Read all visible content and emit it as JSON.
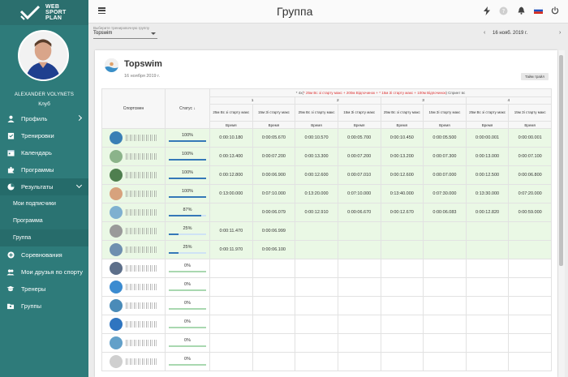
{
  "brand": {
    "line1": "WEB",
    "line2": "SPORT",
    "line3": "PLAN"
  },
  "user": {
    "name": "ALEXANDER VOLYNETS",
    "club": "Клуб"
  },
  "sidebar": {
    "items": [
      {
        "label": "Профиль",
        "icon": "person-icon"
      },
      {
        "label": "Тренировки",
        "icon": "clipboard-check-icon"
      },
      {
        "label": "Календарь",
        "icon": "calendar-icon"
      },
      {
        "label": "Программы",
        "icon": "puzzle-icon"
      },
      {
        "label": "Результаты",
        "icon": "pie-chart-icon"
      },
      {
        "label": "Соревнования",
        "icon": "plus-circle-icon"
      },
      {
        "label": "Мои друзья по спорту",
        "icon": "people-icon"
      },
      {
        "label": "Тренеры",
        "icon": "trainer-icon"
      },
      {
        "label": "Группы",
        "icon": "folder-people-icon"
      }
    ],
    "subitems": [
      {
        "label": "Мои подписчики"
      },
      {
        "label": "Программа"
      },
      {
        "label": "Группа"
      }
    ]
  },
  "header": {
    "title": "Группа"
  },
  "filter": {
    "group_label": "Выберите тренировочную группу",
    "group_value": "Topswim",
    "date_prev": "‹",
    "date_value": "16 нояб. 2019 г.",
    "date_next": "›"
  },
  "card": {
    "title": "Topswim",
    "date": "16 ноября 2019 г.",
    "show_button": "Тайм трайл"
  },
  "table": {
    "col_athlete": "Спортсмен",
    "col_status": "Статус",
    "legend_prefix": "* 4x(",
    "legend_red1": "* 25м Вс зі старту макс + 200м Відпочинок + ",
    "legend_red2": "* 15м Зі старту макс + 100м Відпочинок",
    "legend_suffix": ") Спринт вс",
    "set_numbers": [
      "1",
      "2",
      "3",
      "4"
    ],
    "distances": [
      "25м Вс зі старту макс",
      "15м Зі старту макс",
      "25м Вс зі старту макс",
      "15м Зі старту макс",
      "25м Вс зі старту макс",
      "15м Зі старту макс",
      "25м Вс зі старту макс",
      "15м Зі старту макс"
    ],
    "time_label": "Время",
    "rows": [
      {
        "status": "100%",
        "progress": 1.0,
        "times": [
          "0:00:10.180",
          "0:00:05.670",
          "0:00:10.570",
          "0:00:05.700",
          "0:00:10.450",
          "0:00:05.500",
          "0:00:00.001",
          "0:00:00.001"
        ]
      },
      {
        "status": "100%",
        "progress": 1.0,
        "times": [
          "0:00:13.400",
          "0:00:07.200",
          "0:00:13.300",
          "0:00:07.200",
          "0:00:13.200",
          "0:00:07.300",
          "0:00:13.000",
          "0:00:07.100"
        ]
      },
      {
        "status": "100%",
        "progress": 1.0,
        "times": [
          "0:00:12.800",
          "0:00:06.900",
          "0:00:12.600",
          "0:00:07.010",
          "0:00:12.600",
          "0:00:07.000",
          "0:00:12.500",
          "0:00:06.800"
        ]
      },
      {
        "status": "100%",
        "progress": 1.0,
        "times": [
          "0:13:00.000",
          "0:07:10.000",
          "0:13:20.000",
          "0:07:10.000",
          "0:13:40.000",
          "0:07:30.000",
          "0:13:30.000",
          "0:07:20.000"
        ]
      },
      {
        "status": "87%",
        "progress": 0.87,
        "times": [
          "",
          "0:00:06.079",
          "0:00:12.910",
          "0:00:06.670",
          "0:00:12.670",
          "0:00:06.083",
          "0:00:12.820",
          "0:00:59.000"
        ]
      },
      {
        "status": "25%",
        "progress": 0.25,
        "times": [
          "0:00:11.470",
          "0:00:06.999",
          "",
          "",
          "",
          "",
          "",
          ""
        ]
      },
      {
        "status": "25%",
        "progress": 0.25,
        "times": [
          "0:00:11.970",
          "0:00:06.100",
          "",
          "",
          "",
          "",
          "",
          ""
        ]
      },
      {
        "status": "0%",
        "progress": 0,
        "times": [
          "",
          "",
          "",
          "",
          "",
          "",
          "",
          ""
        ]
      },
      {
        "status": "0%",
        "progress": 0,
        "times": [
          "",
          "",
          "",
          "",
          "",
          "",
          "",
          ""
        ]
      },
      {
        "status": "0%",
        "progress": 0,
        "times": [
          "",
          "",
          "",
          "",
          "",
          "",
          "",
          ""
        ]
      },
      {
        "status": "0%",
        "progress": 0,
        "times": [
          "",
          "",
          "",
          "",
          "",
          "",
          "",
          ""
        ]
      },
      {
        "status": "0%",
        "progress": 0,
        "times": [
          "",
          "",
          "",
          "",
          "",
          "",
          "",
          ""
        ]
      },
      {
        "status": "0%",
        "progress": 0,
        "times": [
          "",
          "",
          "",
          "",
          "",
          "",
          "",
          ""
        ]
      }
    ]
  },
  "colors": {
    "sidebar": "#2e7b7a",
    "accent": "#3578b8",
    "row_done": "#eaf8e5"
  }
}
